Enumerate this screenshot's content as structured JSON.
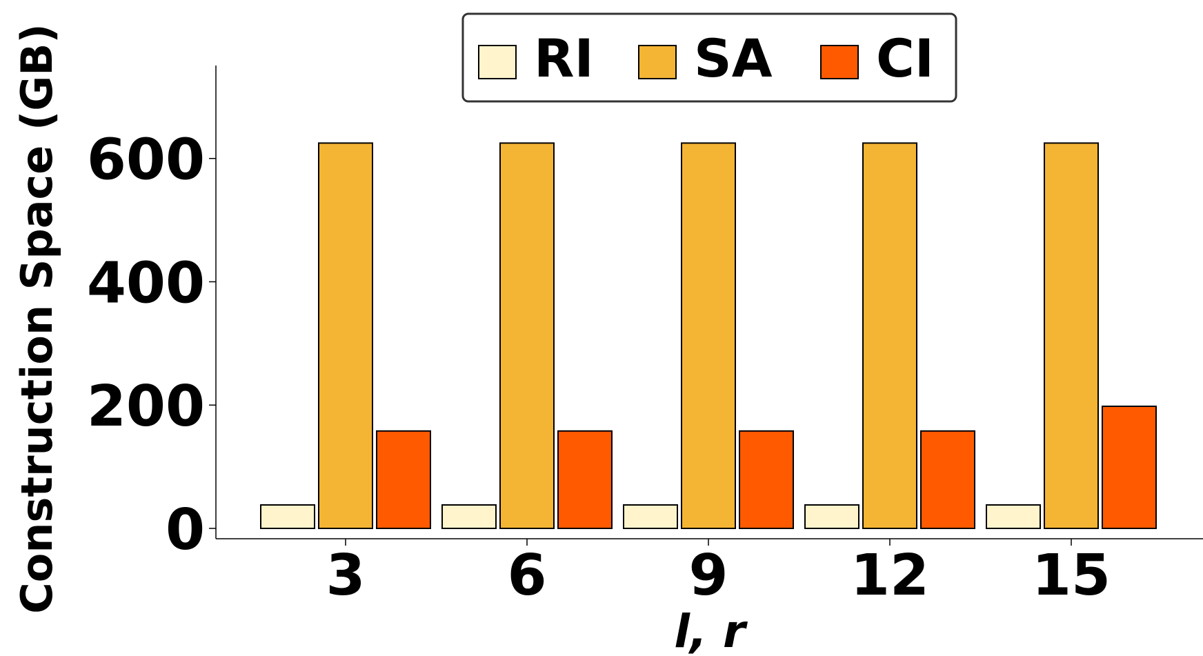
{
  "chart_data": {
    "type": "bar",
    "categories": [
      "3",
      "6",
      "9",
      "12",
      "15"
    ],
    "series": [
      {
        "name": "RI",
        "values": [
          38,
          38,
          38,
          38,
          38
        ],
        "color": "#FFF4CC"
      },
      {
        "name": "SA",
        "values": [
          625,
          625,
          625,
          625,
          625
        ],
        "color": "#F4B434"
      },
      {
        "name": "CI",
        "values": [
          158,
          158,
          158,
          158,
          198
        ],
        "color": "#FF5A00"
      }
    ],
    "xlabel": "l, r",
    "ylabel": "Construction Space (GB)",
    "yticks": [
      0,
      200,
      400,
      600
    ],
    "ylim": [
      -15,
      750
    ],
    "legend_position": "top-center",
    "grid": false
  }
}
